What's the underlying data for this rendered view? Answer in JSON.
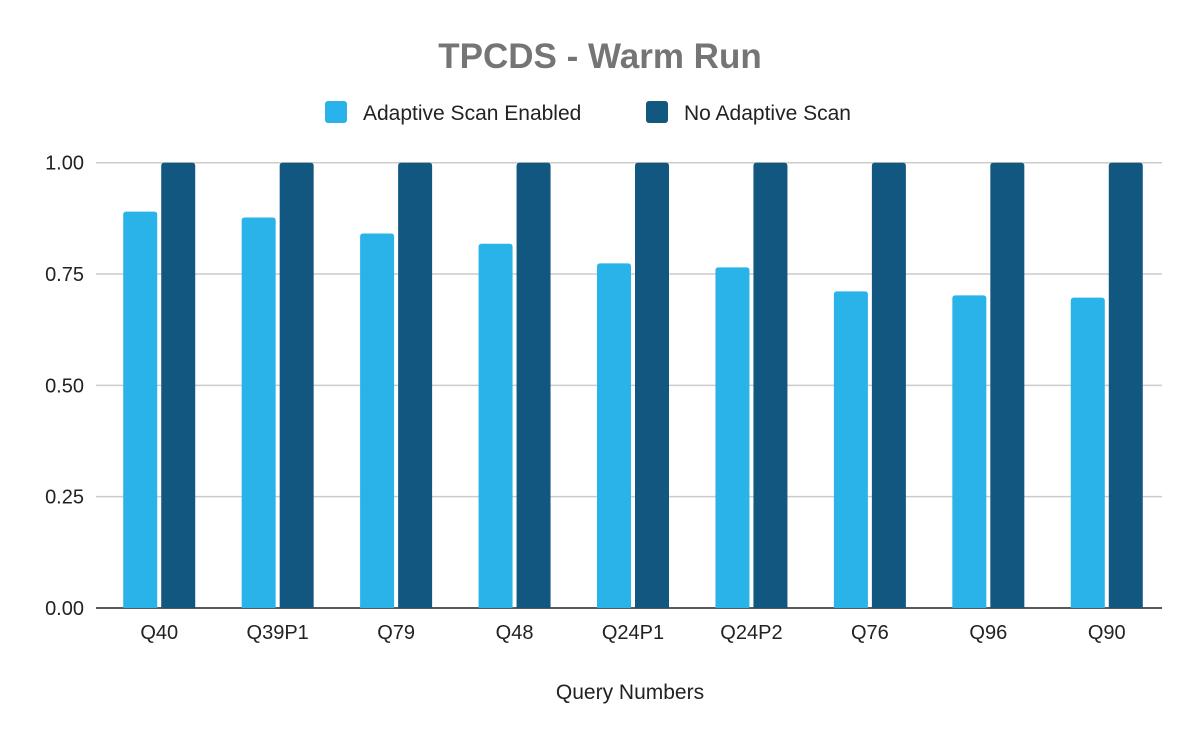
{
  "chart_data": {
    "type": "bar",
    "title": "TPCDS - Warm Run",
    "xlabel": "Query Numbers",
    "ylabel": "",
    "ylim": [
      0,
      1
    ],
    "yticks": [
      "0.00",
      "0.25",
      "0.50",
      "0.75",
      "1.00"
    ],
    "grid": true,
    "legend_position": "top",
    "categories": [
      "Q40",
      "Q39P1",
      "Q79",
      "Q48",
      "Q24P1",
      "Q24P2",
      "Q76",
      "Q96",
      "Q90"
    ],
    "series": [
      {
        "name": "Adaptive Scan Enabled",
        "color": "#29b3e8",
        "values": [
          0.89,
          0.877,
          0.841,
          0.818,
          0.774,
          0.765,
          0.711,
          0.702,
          0.697
        ]
      },
      {
        "name": "No Adaptive Scan",
        "color": "#11577f",
        "values": [
          1,
          1,
          1,
          1,
          1,
          1,
          1,
          1,
          1
        ]
      }
    ]
  }
}
